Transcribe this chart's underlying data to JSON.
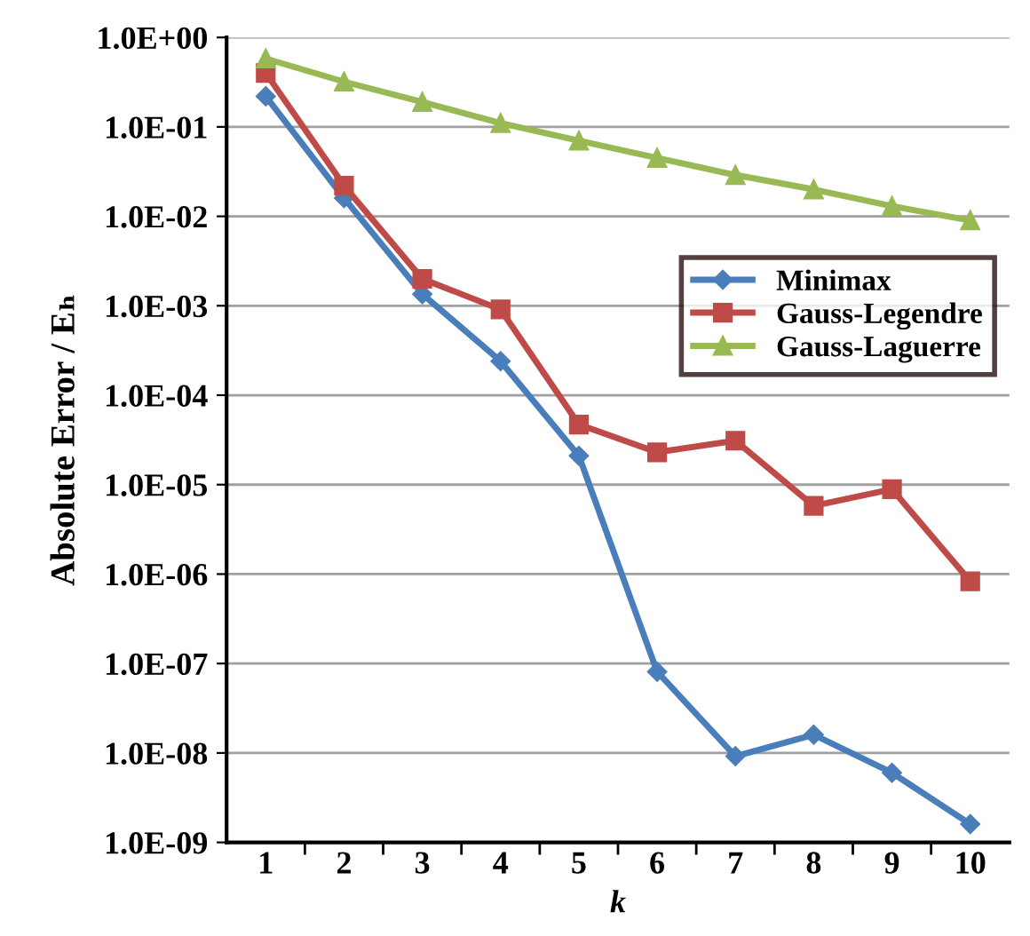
{
  "chart_data": {
    "type": "line",
    "xlabel": "k",
    "ylabel": "Absolute Error / Eₕ",
    "categories": [
      "1",
      "2",
      "3",
      "4",
      "5",
      "6",
      "7",
      "8",
      "9",
      "10"
    ],
    "series": [
      {
        "name": "Minimax",
        "color": "#4a7ebb",
        "marker": "diamond",
        "values": [
          0.22,
          0.016,
          0.00135,
          0.00024,
          2.1e-05,
          8.1e-08,
          9.2e-09,
          1.6e-08,
          6e-09,
          1.6e-09
        ]
      },
      {
        "name": "Gauss-Legendre",
        "color": "#be4b48",
        "marker": "square",
        "values": [
          0.4,
          0.022,
          0.002,
          0.00091,
          4.7e-05,
          2.3e-05,
          3.1e-05,
          5.8e-06,
          8.9e-06,
          8.3e-07
        ]
      },
      {
        "name": "Gauss-Laguerre",
        "color": "#98b954",
        "marker": "triangle",
        "values": [
          0.58,
          0.32,
          0.19,
          0.11,
          0.07,
          0.045,
          0.029,
          0.02,
          0.013,
          0.009
        ]
      }
    ],
    "log": "y",
    "ylim": [
      1e-09,
      1
    ],
    "yticks": [
      {
        "value": 1,
        "label": "1.0E+00"
      },
      {
        "value": 0.1,
        "label": "1.0E-01"
      },
      {
        "value": 0.01,
        "label": "1.0E-02"
      },
      {
        "value": 0.001,
        "label": "1.0E-03"
      },
      {
        "value": 0.0001,
        "label": "1.0E-04"
      },
      {
        "value": 1e-05,
        "label": "1.0E-05"
      },
      {
        "value": 1e-06,
        "label": "1.0E-06"
      },
      {
        "value": 1e-07,
        "label": "1.0E-07"
      },
      {
        "value": 1e-08,
        "label": "1.0E-08"
      },
      {
        "value": 1e-09,
        "label": "1.0E-09"
      }
    ],
    "grid": "y",
    "legend": "right",
    "line_style": "solid"
  }
}
